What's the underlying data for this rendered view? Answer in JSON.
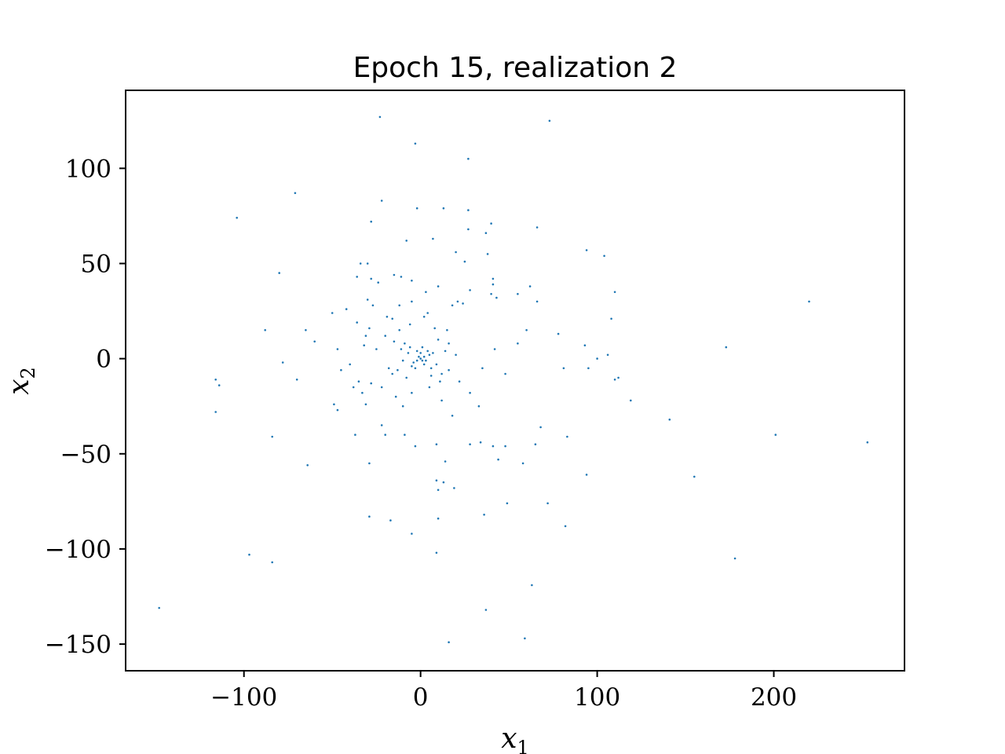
{
  "chart_data": {
    "type": "scatter",
    "title": "Epoch 15, realization 2",
    "xlabel": "x",
    "xlabel_sub": "1",
    "ylabel": "x",
    "ylabel_sub": "2",
    "xlim": [
      -167,
      274
    ],
    "ylim": [
      -164,
      141
    ],
    "xticks": [
      -100,
      0,
      100,
      200
    ],
    "xtick_labels": [
      "−100",
      "0",
      "100",
      "200"
    ],
    "yticks": [
      -150,
      -100,
      -50,
      0,
      50,
      100
    ],
    "ytick_labels": [
      "−150",
      "−100",
      "−50",
      "0",
      "50",
      "100"
    ],
    "grid": false,
    "color": "#1f77b4",
    "series": [
      {
        "points": [
          [
            -23,
            127
          ],
          [
            73,
            125
          ],
          [
            -3,
            113
          ],
          [
            27,
            105
          ],
          [
            -22,
            83
          ],
          [
            -104,
            74
          ],
          [
            -71,
            87
          ],
          [
            -28,
            72
          ],
          [
            -2,
            79
          ],
          [
            13,
            79
          ],
          [
            27,
            78
          ],
          [
            40,
            71
          ],
          [
            -8,
            62
          ],
          [
            7,
            63
          ],
          [
            27,
            68
          ],
          [
            37,
            66
          ],
          [
            66,
            69
          ],
          [
            94,
            57
          ],
          [
            104,
            54
          ],
          [
            -30,
            50
          ],
          [
            -34,
            50
          ],
          [
            -80,
            45
          ],
          [
            -36,
            43
          ],
          [
            -28,
            42
          ],
          [
            -24,
            40
          ],
          [
            -15,
            44
          ],
          [
            -11,
            43
          ],
          [
            -5,
            41
          ],
          [
            20,
            56
          ],
          [
            25,
            51
          ],
          [
            38,
            55
          ],
          [
            41,
            42
          ],
          [
            41,
            39
          ],
          [
            62,
            38
          ],
          [
            40,
            34
          ],
          [
            43,
            32
          ],
          [
            55,
            34
          ],
          [
            66,
            30
          ],
          [
            110,
            35
          ],
          [
            -30,
            31
          ],
          [
            -27,
            28
          ],
          [
            21,
            30
          ],
          [
            24,
            29
          ],
          [
            18,
            28
          ],
          [
            28,
            36
          ],
          [
            3,
            35
          ],
          [
            -50,
            24
          ],
          [
            -19,
            22
          ],
          [
            -16,
            21
          ],
          [
            4,
            24
          ],
          [
            108,
            21
          ],
          [
            -88,
            15
          ],
          [
            -65,
            15
          ],
          [
            -36,
            19
          ],
          [
            -29,
            16
          ],
          [
            -31,
            12
          ],
          [
            -60,
            9
          ],
          [
            -47,
            5
          ],
          [
            -32,
            7
          ],
          [
            78,
            13
          ],
          [
            93,
            7
          ],
          [
            173,
            6
          ],
          [
            220,
            30
          ],
          [
            -78,
            -2
          ],
          [
            -45,
            -6
          ],
          [
            -70,
            -11
          ],
          [
            -116,
            -11
          ],
          [
            -114,
            -14
          ],
          [
            -116,
            -28
          ],
          [
            -49,
            -24
          ],
          [
            -47,
            -27
          ],
          [
            -35,
            -12
          ],
          [
            -28,
            -13
          ],
          [
            -33,
            -18
          ],
          [
            -31,
            -24
          ],
          [
            81,
            -5
          ],
          [
            95,
            -5
          ],
          [
            100,
            0
          ],
          [
            106,
            2
          ],
          [
            110,
            -11
          ],
          [
            112,
            -10
          ],
          [
            119,
            -22
          ],
          [
            141,
            -32
          ],
          [
            201,
            -40
          ],
          [
            253,
            -44
          ],
          [
            -84,
            -41
          ],
          [
            -64,
            -56
          ],
          [
            -37,
            -40
          ],
          [
            -29,
            -55
          ],
          [
            -20,
            -40
          ],
          [
            -22,
            -35
          ],
          [
            -9,
            -40
          ],
          [
            -3,
            -46
          ],
          [
            9,
            -45
          ],
          [
            14,
            -54
          ],
          [
            28,
            -45
          ],
          [
            34,
            -44
          ],
          [
            41,
            -46
          ],
          [
            44,
            -53
          ],
          [
            48,
            -46
          ],
          [
            58,
            -55
          ],
          [
            65,
            -45
          ],
          [
            68,
            -36
          ],
          [
            83,
            -41
          ],
          [
            9,
            -64
          ],
          [
            13,
            -65
          ],
          [
            10,
            -69
          ],
          [
            19,
            -68
          ],
          [
            -29,
            -83
          ],
          [
            -17,
            -85
          ],
          [
            10,
            -84
          ],
          [
            36,
            -82
          ],
          [
            49,
            -76
          ],
          [
            72,
            -76
          ],
          [
            82,
            -88
          ],
          [
            94,
            -61
          ],
          [
            155,
            -62
          ],
          [
            -97,
            -103
          ],
          [
            -84,
            -107
          ],
          [
            -5,
            -92
          ],
          [
            9,
            -102
          ],
          [
            178,
            -105
          ],
          [
            -148,
            -131
          ],
          [
            63,
            -119
          ],
          [
            37,
            -132
          ],
          [
            16,
            -149
          ],
          [
            59,
            -147
          ],
          [
            -42,
            26
          ],
          [
            -5,
            30
          ],
          [
            10,
            38
          ],
          [
            -12,
            28
          ],
          [
            2,
            22
          ],
          [
            15,
            15
          ],
          [
            -20,
            12
          ],
          [
            -25,
            5
          ],
          [
            -18,
            -5
          ],
          [
            -22,
            -15
          ],
          [
            -14,
            -20
          ],
          [
            -10,
            -25
          ],
          [
            -5,
            -18
          ],
          [
            5,
            -15
          ],
          [
            12,
            -22
          ],
          [
            18,
            -30
          ],
          [
            22,
            -12
          ],
          [
            28,
            -18
          ],
          [
            33,
            -25
          ],
          [
            35,
            -5
          ],
          [
            42,
            5
          ],
          [
            48,
            -8
          ],
          [
            55,
            8
          ],
          [
            60,
            15
          ],
          [
            -40,
            -3
          ],
          [
            -38,
            -15
          ],
          [
            -12,
            15
          ],
          [
            -6,
            18
          ],
          [
            8,
            16
          ],
          [
            16,
            8
          ],
          [
            20,
            2
          ],
          [
            -16,
            -8
          ],
          [
            -8,
            -10
          ],
          [
            6,
            -9
          ],
          [
            12,
            -8
          ],
          [
            -3,
            -5
          ],
          [
            2,
            -3
          ],
          [
            -2,
            4
          ],
          [
            1,
            6
          ],
          [
            -7,
            3
          ],
          [
            5,
            2
          ],
          [
            -4,
            -2
          ],
          [
            3,
            -1
          ],
          [
            0,
            0
          ],
          [
            -1,
            1
          ],
          [
            1,
            -1
          ],
          [
            -2,
            -1
          ],
          [
            2,
            1
          ],
          [
            0,
            3
          ],
          [
            4,
            4
          ],
          [
            -5,
            -4
          ],
          [
            6,
            -5
          ],
          [
            -6,
            6
          ],
          [
            7,
            3
          ],
          [
            -9,
            8
          ],
          [
            9,
            -3
          ],
          [
            -10,
            -1
          ],
          [
            10,
            10
          ],
          [
            -11,
            5
          ],
          [
            11,
            -12
          ],
          [
            -13,
            -6
          ],
          [
            14,
            4
          ],
          [
            -15,
            9
          ],
          [
            16,
            -6
          ]
        ]
      }
    ]
  }
}
